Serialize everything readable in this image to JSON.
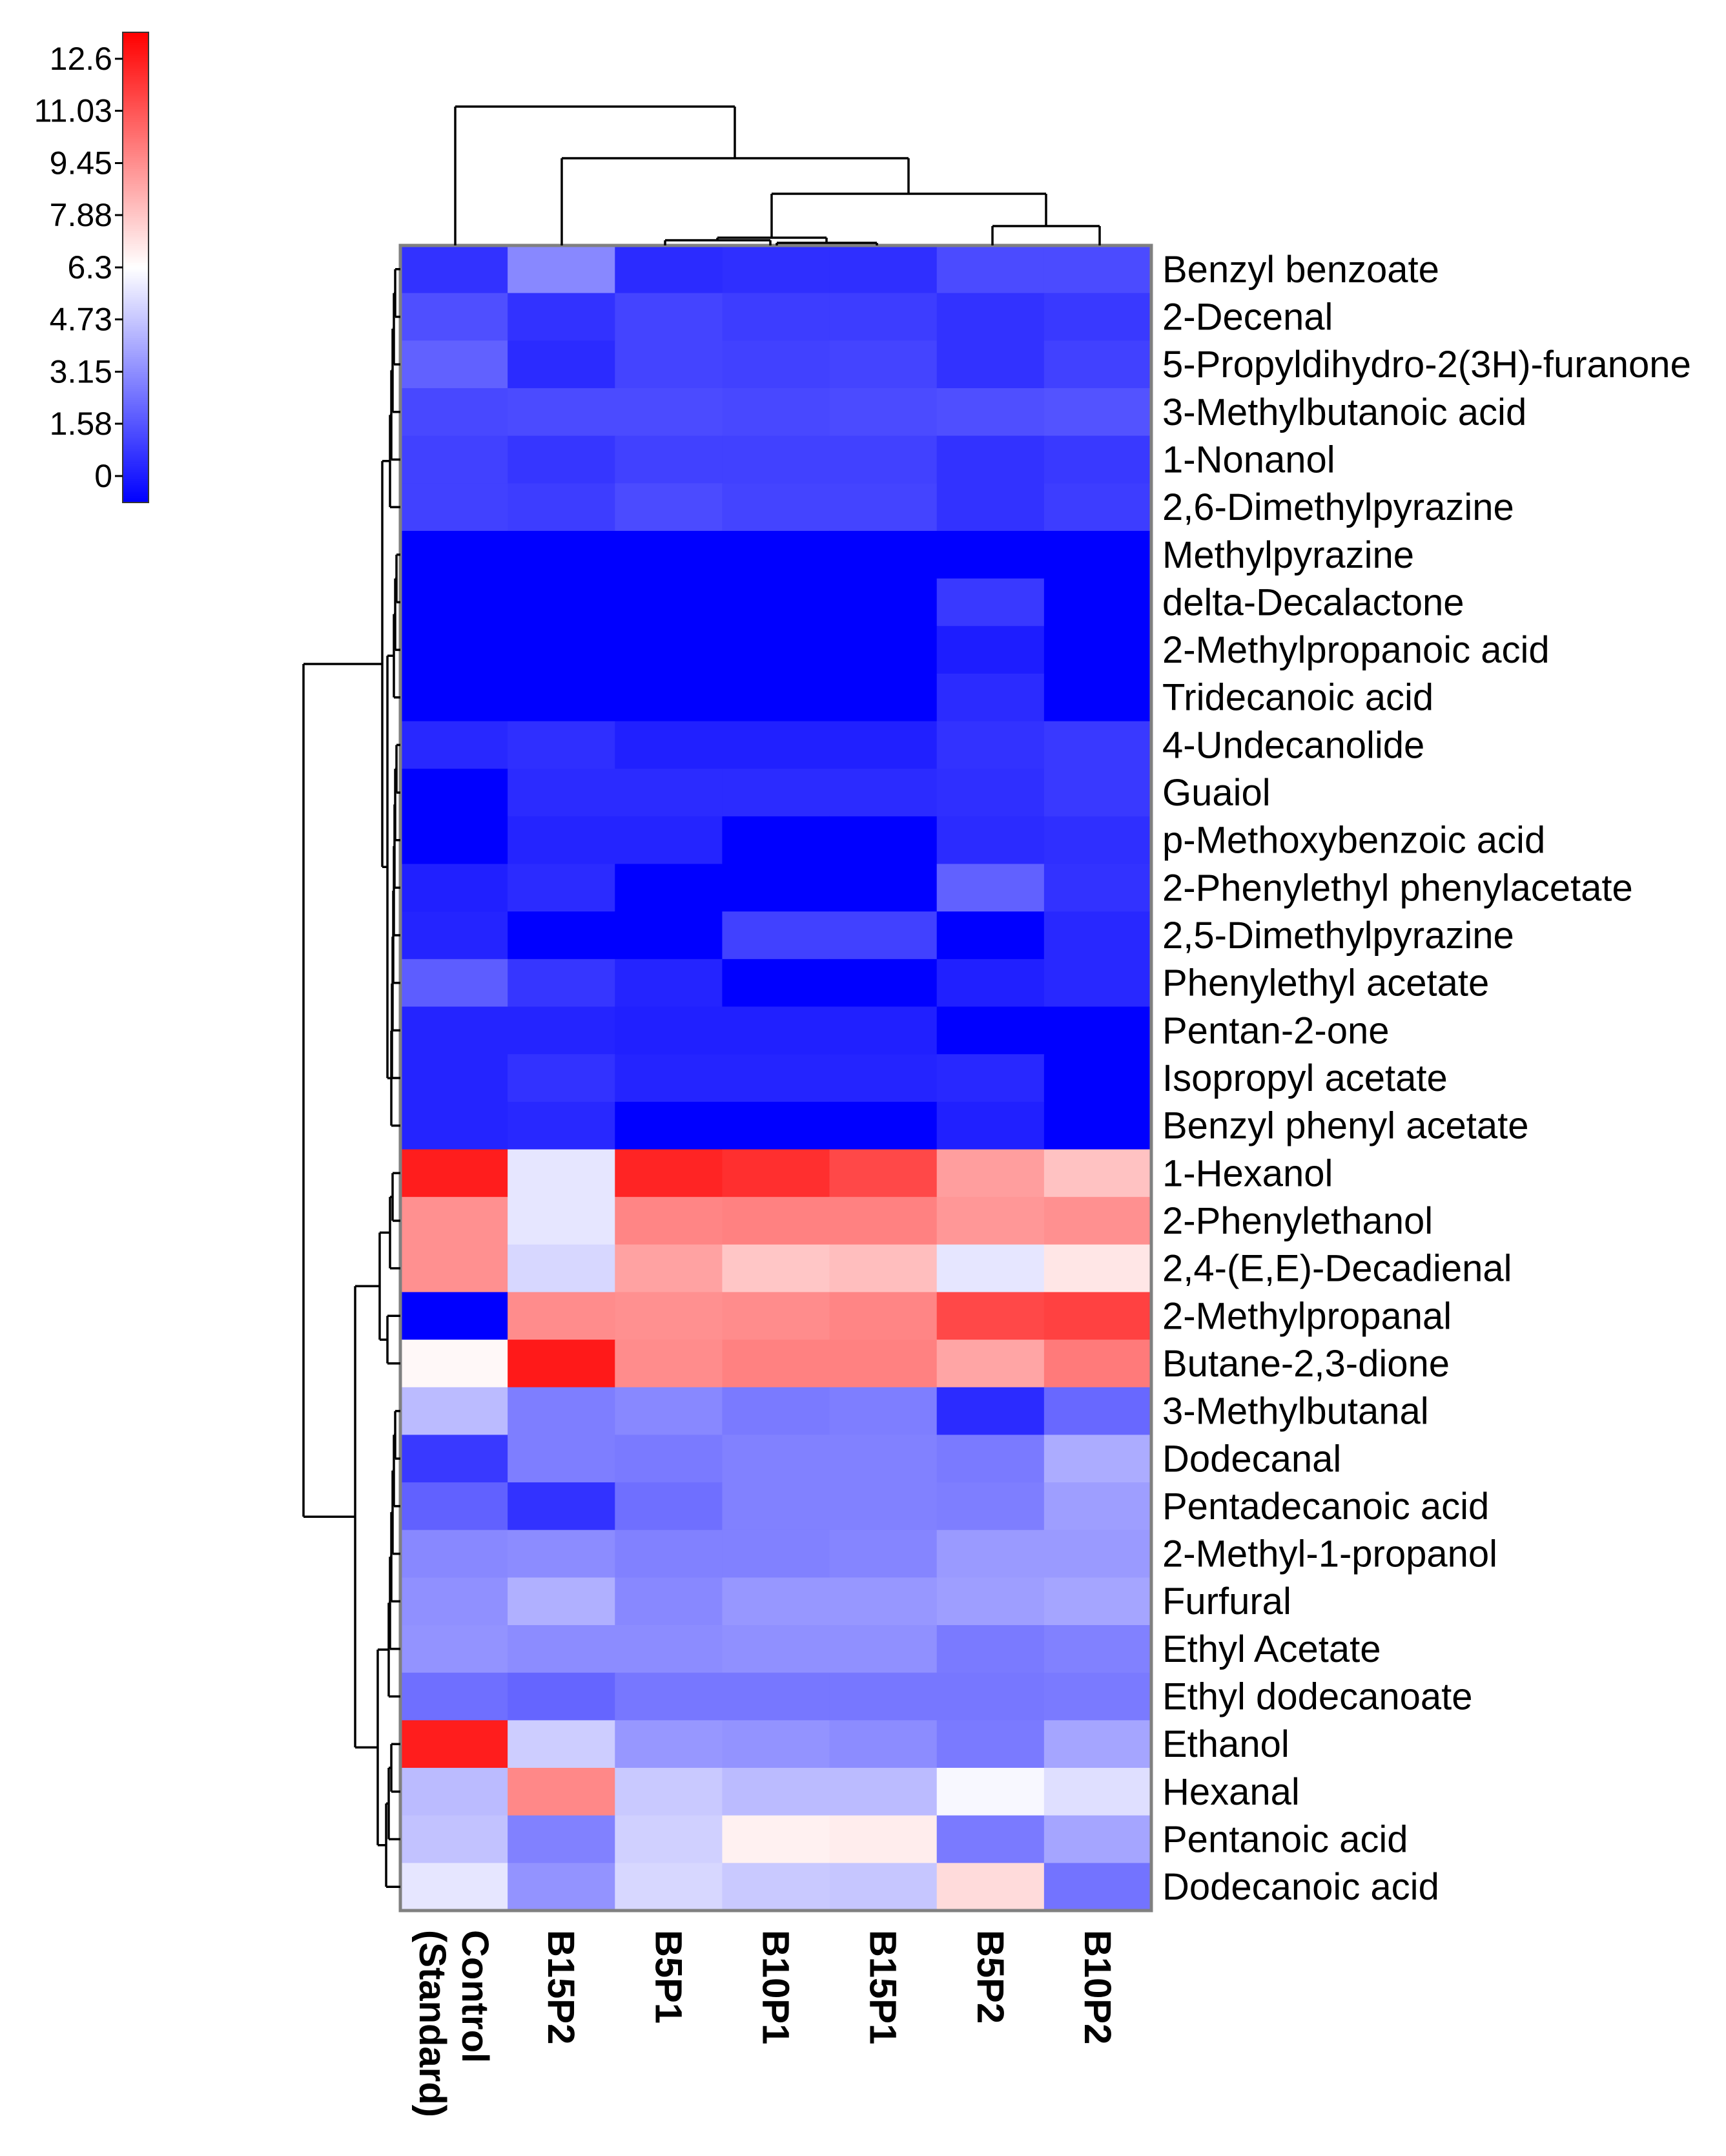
{
  "chart_data": {
    "type": "heatmap",
    "title": "",
    "colorbar": {
      "ticks": [
        "0",
        "1.58",
        "3.15",
        "4.73",
        "6.3",
        "7.88",
        "9.45",
        "11.03",
        "12.6"
      ],
      "tick_values": [
        0,
        1.58,
        3.15,
        4.73,
        6.3,
        7.88,
        9.45,
        11.03,
        12.6
      ],
      "range": [
        -0.8,
        13.4
      ],
      "low_color": "#0000ff",
      "mid_color": "#ffffff",
      "high_color": "#ff0000"
    },
    "columns": [
      "Control\n(Standard)",
      "B15P2",
      "B5P1",
      "B10P1",
      "B15P1",
      "B5P2",
      "B10P2"
    ],
    "rows": [
      "Benzyl benzoate",
      "2-Decenal",
      "5-Propyldihydro-2(3H)-furanone",
      "3-Methylbutanoic acid",
      "1-Nonanol",
      "2,6-Dimethylpyrazine",
      "Methylpyrazine",
      "delta-Decalactone",
      "2-Methylpropanoic acid",
      "Tridecanoic acid",
      "4-Undecanolide",
      "Guaiol",
      "p-Methoxybenzoic acid",
      "2-Phenylethyl phenylacetate",
      "2,5-Dimethylpyrazine",
      "Phenylethyl acetate",
      "Pentan-2-one",
      "Isopropyl acetate",
      "Benzyl phenyl acetate",
      "1-Hexanol",
      "2-Phenylethanol",
      "2,4-(E,E)-Decadienal",
      "2-Methylpropanal",
      "Butane-2,3-dione",
      "3-Methylbutanal",
      "Dodecanal",
      "Pentadecanoic acid",
      "2-Methyl-1-propanol",
      "Furfural",
      "Ethyl Acetate",
      "Ethyl dodecanoate",
      "Ethanol",
      "Hexanal",
      "Pentanoic acid",
      "Dodecanoic acid"
    ],
    "values": [
      [
        0.6,
        3.0,
        0.4,
        0.5,
        0.5,
        1.3,
        1.3
      ],
      [
        1.4,
        0.6,
        1.1,
        0.9,
        0.9,
        0.6,
        0.8
      ],
      [
        1.9,
        0.4,
        1.1,
        1.0,
        1.1,
        0.6,
        1.0
      ],
      [
        1.2,
        1.3,
        1.3,
        1.2,
        1.3,
        1.4,
        1.5
      ],
      [
        1.0,
        0.7,
        1.0,
        1.0,
        1.0,
        0.6,
        0.8
      ],
      [
        1.0,
        0.9,
        1.3,
        1.1,
        1.1,
        0.6,
        0.9
      ],
      [
        -0.8,
        -0.8,
        -0.8,
        -0.8,
        -0.8,
        -0.8,
        -0.8
      ],
      [
        -0.8,
        -0.8,
        -0.8,
        -0.8,
        -0.8,
        0.8,
        -0.8
      ],
      [
        -0.8,
        -0.8,
        -0.8,
        -0.8,
        -0.8,
        0.0,
        -0.8
      ],
      [
        -0.8,
        -0.8,
        -0.8,
        -0.8,
        -0.8,
        0.4,
        -0.8
      ],
      [
        0.3,
        0.5,
        0.1,
        0.1,
        0.1,
        0.6,
        0.8
      ],
      [
        -0.8,
        0.4,
        0.4,
        0.4,
        0.4,
        0.5,
        0.8
      ],
      [
        -0.8,
        0.2,
        0.2,
        -0.8,
        -0.8,
        0.4,
        0.5
      ],
      [
        0.1,
        0.4,
        -0.8,
        -0.8,
        -0.8,
        1.9,
        0.6
      ],
      [
        0.2,
        -0.8,
        -0.8,
        1.0,
        1.0,
        -0.8,
        0.3
      ],
      [
        1.8,
        0.7,
        0.2,
        -0.8,
        -0.8,
        0.1,
        0.3
      ],
      [
        0.2,
        0.2,
        0.1,
        0.1,
        0.1,
        -0.8,
        -0.8
      ],
      [
        0.2,
        0.6,
        0.2,
        0.2,
        0.2,
        0.3,
        -0.8
      ],
      [
        0.2,
        0.3,
        -0.8,
        -0.8,
        -0.8,
        0.1,
        -0.8
      ],
      [
        12.6,
        5.6,
        12.4,
        12.1,
        11.4,
        9.0,
        8.0
      ],
      [
        9.4,
        5.6,
        9.7,
        9.8,
        9.8,
        9.2,
        9.4
      ],
      [
        9.4,
        5.2,
        8.9,
        7.9,
        8.1,
        5.6,
        7.0
      ],
      [
        -0.8,
        9.5,
        9.4,
        9.5,
        9.7,
        11.4,
        11.6
      ],
      [
        6.5,
        12.7,
        9.5,
        9.8,
        9.8,
        8.8,
        10.0
      ],
      [
        4.4,
        2.7,
        3.0,
        2.6,
        2.7,
        0.4,
        2.1
      ],
      [
        0.8,
        2.7,
        2.6,
        2.8,
        2.8,
        2.6,
        4.0
      ],
      [
        1.9,
        0.6,
        2.3,
        2.8,
        2.8,
        2.7,
        3.6
      ],
      [
        3.0,
        3.1,
        2.8,
        2.8,
        2.9,
        3.5,
        3.5
      ],
      [
        3.2,
        4.1,
        3.0,
        3.4,
        3.4,
        3.6,
        3.8
      ],
      [
        3.3,
        3.1,
        3.1,
        3.2,
        3.2,
        2.6,
        2.8
      ],
      [
        2.3,
        2.0,
        2.5,
        2.5,
        2.5,
        2.5,
        2.6
      ],
      [
        12.6,
        4.9,
        3.4,
        3.3,
        3.1,
        2.6,
        3.8
      ],
      [
        4.4,
        9.6,
        4.8,
        4.4,
        4.4,
        6.1,
        5.4
      ],
      [
        4.6,
        2.8,
        5.0,
        6.7,
        6.8,
        2.6,
        3.8
      ],
      [
        5.6,
        3.3,
        5.2,
        4.8,
        4.7,
        7.3,
        2.4
      ]
    ]
  }
}
